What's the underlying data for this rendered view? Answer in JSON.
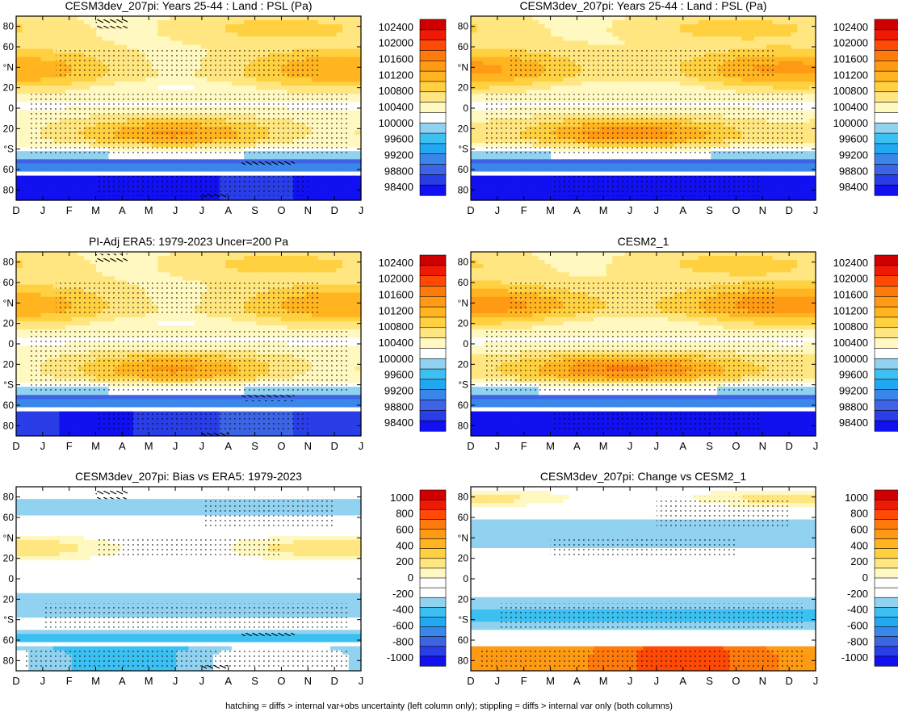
{
  "footer_note": "hatching = diffs > internal var+obs uncertainty (left column only); stippling = diffs > internal var only (both columns)",
  "colors": {
    "abs_scale": [
      "#1010f0",
      "#2a3ee8",
      "#3c64e4",
      "#3a86ea",
      "#22a8f0",
      "#3cc0f2",
      "#90d2f0",
      "#ffffff",
      "#fff8c0",
      "#ffe680",
      "#ffd040",
      "#ffb420",
      "#ff9a14",
      "#ff7a0c",
      "#ff4a06",
      "#f01a04",
      "#d00000"
    ],
    "diff_scale": [
      "#1010f0",
      "#2a3ee8",
      "#3c64e4",
      "#3a86ea",
      "#22a8f0",
      "#3cc0f2",
      "#90d2f0",
      "#ffffff",
      "#ffffff",
      "#fff8c0",
      "#ffe680",
      "#ffd040",
      "#ffb420",
      "#ff9a14",
      "#ff7a0c",
      "#ff4a06",
      "#f01a04",
      "#d00000"
    ],
    "missing": "#ffffff"
  },
  "chart_data": [
    {
      "type": "heatmap",
      "kind": "abs",
      "variant": "model",
      "title": "CESM3dev_207pi: Years 25-44 : Land : PSL (Pa)",
      "x_ticks": [
        "D",
        "J",
        "F",
        "M",
        "A",
        "M",
        "J",
        "J",
        "A",
        "S",
        "O",
        "N",
        "D",
        "J"
      ],
      "y_ticks": [
        "80",
        "60",
        "°N",
        "20",
        "0",
        "20",
        "°S",
        "60",
        "80"
      ],
      "colorbar_labels": [
        "102400",
        "102000",
        "101600",
        "101200",
        "100800",
        "100400",
        "100000",
        "99600",
        "99200",
        "98800",
        "98400"
      ],
      "value_range": [
        98400,
        102400
      ],
      "hatching": true
    },
    {
      "type": "heatmap",
      "kind": "abs",
      "variant": "model2",
      "title": "CESM3dev_207pi: Years 25-44 : Land : PSL (Pa)",
      "x_ticks": [
        "D",
        "J",
        "F",
        "M",
        "A",
        "M",
        "J",
        "J",
        "A",
        "S",
        "O",
        "N",
        "D",
        "J"
      ],
      "y_ticks": [
        "80",
        "60",
        "°N",
        "20",
        "0",
        "20",
        "°S",
        "60",
        "80"
      ],
      "colorbar_labels": [
        "102400",
        "102000",
        "101600",
        "101200",
        "100800",
        "100400",
        "100000",
        "99600",
        "99200",
        "98800",
        "98400"
      ],
      "value_range": [
        98400,
        102400
      ],
      "hatching": false
    },
    {
      "type": "heatmap",
      "kind": "abs",
      "variant": "obs",
      "title": "PI-Adj ERA5: 1979-2023 Uncer=200 Pa",
      "x_ticks": [
        "D",
        "J",
        "F",
        "M",
        "A",
        "M",
        "J",
        "J",
        "A",
        "S",
        "O",
        "N",
        "D",
        "J"
      ],
      "y_ticks": [
        "80",
        "60",
        "°N",
        "20",
        "0",
        "20",
        "°S",
        "60",
        "80"
      ],
      "colorbar_labels": [
        "102400",
        "102000",
        "101600",
        "101200",
        "100800",
        "100400",
        "100000",
        "99600",
        "99200",
        "98800",
        "98400"
      ],
      "value_range": [
        98400,
        102400
      ],
      "hatching": true
    },
    {
      "type": "heatmap",
      "kind": "abs",
      "variant": "cesm2",
      "title": "CESM2_1",
      "x_ticks": [
        "D",
        "J",
        "F",
        "M",
        "A",
        "M",
        "J",
        "J",
        "A",
        "S",
        "O",
        "N",
        "D",
        "J"
      ],
      "y_ticks": [
        "80",
        "60",
        "°N",
        "20",
        "0",
        "20",
        "°S",
        "60",
        "80"
      ],
      "colorbar_labels": [
        "102400",
        "102000",
        "101600",
        "101200",
        "100800",
        "100400",
        "100000",
        "99600",
        "99200",
        "98800",
        "98400"
      ],
      "value_range": [
        98400,
        102400
      ],
      "hatching": false
    },
    {
      "type": "heatmap",
      "kind": "diff",
      "variant": "bias",
      "title": "CESM3dev_207pi: Bias vs ERA5: 1979-2023",
      "x_ticks": [
        "D",
        "J",
        "F",
        "M",
        "A",
        "M",
        "J",
        "J",
        "A",
        "S",
        "O",
        "N",
        "D",
        "J"
      ],
      "y_ticks": [
        "80",
        "60",
        "°N",
        "20",
        "0",
        "20",
        "°S",
        "60",
        "80"
      ],
      "colorbar_labels": [
        "1000",
        "800",
        "600",
        "400",
        "200",
        "0",
        "-200",
        "-400",
        "-600",
        "-800",
        "-1000"
      ],
      "value_range": [
        -1000,
        1000
      ],
      "hatching": true
    },
    {
      "type": "heatmap",
      "kind": "diff",
      "variant": "change",
      "title": "CESM3dev_207pi: Change vs CESM2_1",
      "x_ticks": [
        "D",
        "J",
        "F",
        "M",
        "A",
        "M",
        "J",
        "J",
        "A",
        "S",
        "O",
        "N",
        "D",
        "J"
      ],
      "y_ticks": [
        "80",
        "60",
        "°N",
        "20",
        "0",
        "20",
        "°S",
        "60",
        "80"
      ],
      "colorbar_labels": [
        "1000",
        "800",
        "600",
        "400",
        "200",
        "0",
        "-200",
        "-400",
        "-600",
        "-800",
        "-1000"
      ],
      "value_range": [
        -1000,
        1000
      ],
      "hatching": false
    }
  ]
}
